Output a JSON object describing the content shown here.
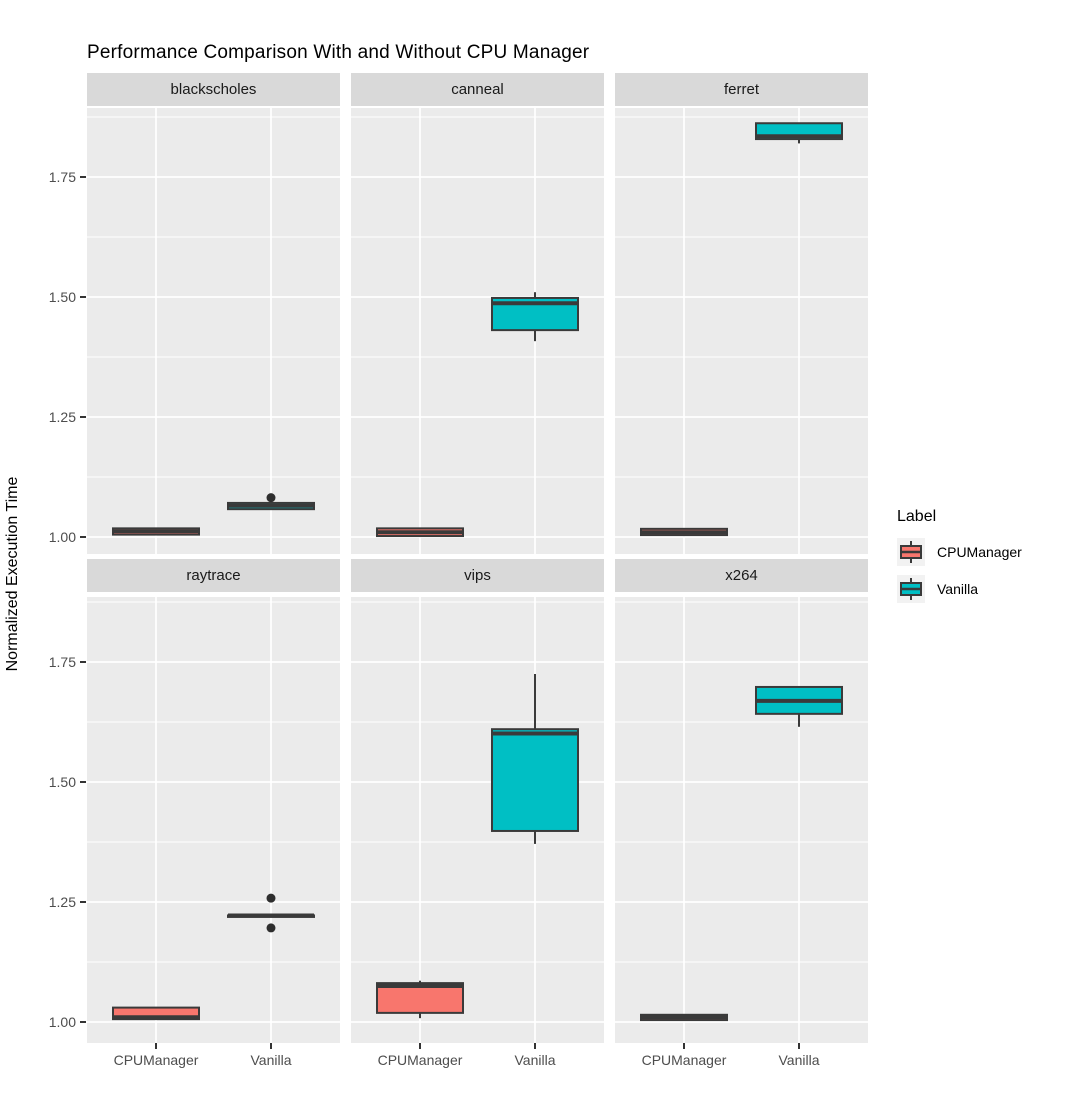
{
  "chart_data": {
    "type": "boxplot",
    "title": "Performance Comparison With and Without CPU Manager",
    "ylabel": "Normalized Execution Time",
    "xlabel": "",
    "ylim": [
      0.96,
      1.895
    ],
    "y_ticks": [
      "1.00",
      "1.25",
      "1.50",
      "1.75"
    ],
    "y_tick_values": [
      1.0,
      1.25,
      1.5,
      1.75
    ],
    "y_minor_values": [
      1.125,
      1.375,
      1.625,
      1.875
    ],
    "x_categories": [
      "CPUManager",
      "Vanilla"
    ],
    "grid": "white major and minor gridlines on gray panels",
    "legend": {
      "title": "Label",
      "position": "right",
      "entries": [
        {
          "label": "CPUManager",
          "color": "#F8766D"
        },
        {
          "label": "Vanilla",
          "color": "#00BFC4"
        }
      ]
    },
    "colors": {
      "cpumanager_fill": "#F8766D",
      "vanilla_fill": "#00BFC4",
      "box_border": "#3A3A3A",
      "outlier": "#2E2E2E",
      "panel_bg": "#EBEBEB",
      "strip_bg": "#D9D9D9",
      "gridline": "#FFFFFF",
      "tick_text": "#4D4D4D"
    },
    "facets": [
      {
        "name": "blackscholes",
        "boxes": [
          {
            "group": "CPUManager",
            "low": 1.005,
            "q1": 1.005,
            "median": 1.012,
            "q3": 1.018,
            "high": 1.018,
            "outliers": []
          },
          {
            "group": "Vanilla",
            "low": 1.058,
            "q1": 1.058,
            "median": 1.065,
            "q3": 1.071,
            "high": 1.071,
            "outliers": [
              1.082
            ]
          }
        ]
      },
      {
        "name": "canneal",
        "boxes": [
          {
            "group": "CPUManager",
            "low": 1.002,
            "q1": 1.002,
            "median": 1.01,
            "q3": 1.018,
            "high": 1.018,
            "outliers": []
          },
          {
            "group": "Vanilla",
            "low": 1.408,
            "q1": 1.431,
            "median": 1.487,
            "q3": 1.498,
            "high": 1.51,
            "outliers": []
          }
        ]
      },
      {
        "name": "ferret",
        "boxes": [
          {
            "group": "CPUManager",
            "low": 1.002,
            "q1": 1.004,
            "median": 1.01,
            "q3": 1.017,
            "high": 1.017,
            "outliers": []
          },
          {
            "group": "Vanilla",
            "low": 1.82,
            "q1": 1.829,
            "median": 1.835,
            "q3": 1.862,
            "high": 1.862,
            "outliers": []
          }
        ]
      },
      {
        "name": "raytrace",
        "boxes": [
          {
            "group": "CPUManager",
            "low": 1.005,
            "q1": 1.006,
            "median": 1.01,
            "q3": 1.03,
            "high": 1.03,
            "outliers": []
          },
          {
            "group": "Vanilla",
            "low": 1.222,
            "q1": 1.222,
            "median": 1.222,
            "q3": 1.222,
            "high": 1.222,
            "outliers": [
              1.258,
              1.196
            ]
          }
        ]
      },
      {
        "name": "vips",
        "boxes": [
          {
            "group": "CPUManager",
            "low": 1.008,
            "q1": 1.019,
            "median": 1.075,
            "q3": 1.081,
            "high": 1.086,
            "outliers": []
          },
          {
            "group": "Vanilla",
            "low": 1.371,
            "q1": 1.398,
            "median": 1.601,
            "q3": 1.61,
            "high": 1.725,
            "outliers": []
          }
        ]
      },
      {
        "name": "x264",
        "boxes": [
          {
            "group": "CPUManager",
            "low": 1.003,
            "q1": 1.004,
            "median": 1.01,
            "q3": 1.015,
            "high": 1.015,
            "outliers": []
          },
          {
            "group": "Vanilla",
            "low": 1.615,
            "q1": 1.642,
            "median": 1.669,
            "q3": 1.698,
            "high": 1.698,
            "outliers": []
          }
        ]
      }
    ]
  }
}
